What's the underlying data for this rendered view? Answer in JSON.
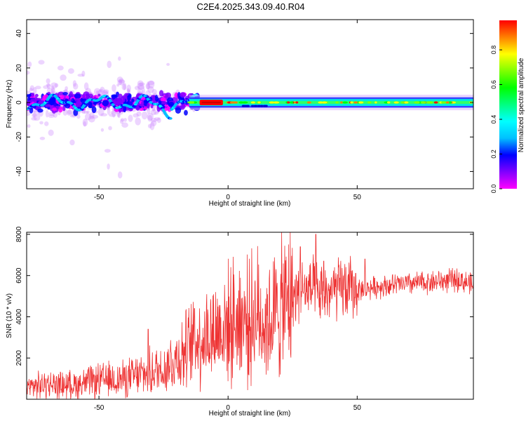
{
  "figure": {
    "title": "C2E4.2025.343.09.40.R04"
  },
  "chart_data": [
    {
      "type": "heatmap",
      "xlabel": "Height of straight line (km)",
      "ylabel": "Frequency (Hz)",
      "xlim": [
        -78,
        95
      ],
      "ylim": [
        -50,
        48
      ],
      "xticks": [
        -50,
        0,
        50
      ],
      "yticks": [
        -40,
        -20,
        0,
        20,
        40
      ],
      "colorbar": {
        "label": "Normalized spectral amplitude",
        "range": [
          0.0,
          0.97
        ],
        "ticks": [
          "0.0",
          "0.2",
          "0.4",
          "0.6",
          "0.8"
        ],
        "colormap": [
          "#ff00ff",
          "#8000ff",
          "#0000ff",
          "#00c0ff",
          "#00ffff",
          "#00ff80",
          "#00ff00",
          "#80ff00",
          "#ffff00",
          "#ff8000",
          "#ff0000"
        ]
      },
      "features": [
        {
          "x_range": [
            -78,
            -15
          ],
          "description_value": "scatter band centered near 0 Hz, spread about ±10 Hz, up to ±45 Hz"
        },
        {
          "x_range": [
            -15,
            95
          ],
          "description_value": "narrow band centered at 0 Hz, width about ±3 Hz"
        },
        {
          "x_range": [
            -11,
            -2
          ],
          "peak_amplitude": 0.97
        }
      ],
      "grid": false
    },
    {
      "type": "line",
      "xlabel": "Height of straight line (km)",
      "ylabel": "SNR (10 * v/v)",
      "xlim": [
        -78,
        95
      ],
      "ylim": [
        0,
        8100
      ],
      "xticks": [
        -50,
        0,
        50
      ],
      "yticks": [
        2000,
        4000,
        6000,
        8000
      ],
      "color": "#ee3333",
      "grid": false,
      "series": [
        {
          "x": [
            -78,
            -70,
            -60,
            -50,
            -40,
            -30,
            -25,
            -20,
            -15,
            -10,
            -5,
            0,
            5,
            8,
            10,
            15,
            20,
            25,
            28,
            30,
            33,
            35,
            40,
            45,
            50,
            55,
            60,
            70,
            80,
            90,
            95
          ],
          "y": [
            600,
            700,
            700,
            900,
            1000,
            1300,
            1500,
            2000,
            2500,
            3000,
            3300,
            3600,
            4000,
            3700,
            4200,
            3700,
            4300,
            4900,
            5500,
            5200,
            5300,
            5000,
            5200,
            5400,
            5300,
            5400,
            5500,
            5600,
            5700,
            5800,
            5500
          ],
          "peaks": [
            {
              "x": 34,
              "y": 8000
            },
            {
              "x": 28,
              "y": 7400
            },
            {
              "x": 37,
              "y": 6700
            },
            {
              "x": 53,
              "y": 6800
            },
            {
              "x": -13,
              "y": 4400
            },
            {
              "x": -31,
              "y": 3400
            }
          ]
        }
      ]
    }
  ]
}
